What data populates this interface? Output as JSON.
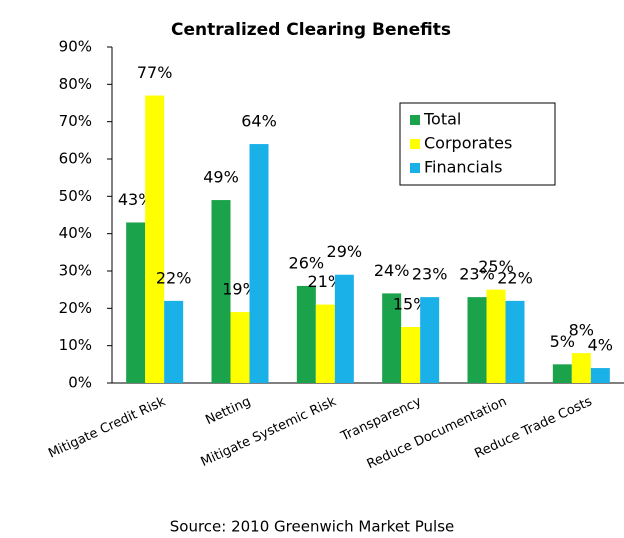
{
  "chart_data": {
    "type": "bar",
    "title": "Centralized Clearing Benefits",
    "source": "Source: 2010 Greenwich Market Pulse",
    "categories": [
      "Mitigate Credit Risk",
      "Netting",
      "Mitigate Systemic Risk",
      "Transparency",
      "Reduce Documentation",
      "Reduce Trade Costs"
    ],
    "series": [
      {
        "name": "Total",
        "color": "#1aa34a",
        "values": [
          43,
          49,
          26,
          24,
          23,
          5
        ],
        "value_labels": [
          "43%",
          "49%",
          "26%",
          "24%",
          "23%",
          "5%"
        ]
      },
      {
        "name": "Corporates",
        "color": "#ffff00",
        "values": [
          77,
          19,
          21,
          15,
          25,
          8
        ],
        "value_labels": [
          "77%",
          "19%",
          "21%",
          "15%",
          "25%",
          "8%"
        ]
      },
      {
        "name": "Financials",
        "color": "#1ab0e8",
        "values": [
          22,
          64,
          29,
          23,
          22,
          4
        ],
        "value_labels": [
          "22%",
          "64%",
          "29%",
          "23%",
          "22%",
          "4%"
        ]
      }
    ],
    "ylim": [
      0,
      90
    ],
    "yticks": [
      {
        "value": 0,
        "label": "0%"
      },
      {
        "value": 10,
        "label": "10%"
      },
      {
        "value": 20,
        "label": "20%"
      },
      {
        "value": 30,
        "label": "30%"
      },
      {
        "value": 40,
        "label": "40%"
      },
      {
        "value": 50,
        "label": "50%"
      },
      {
        "value": 60,
        "label": "60%"
      },
      {
        "value": 70,
        "label": "70%"
      },
      {
        "value": 80,
        "label": "80%"
      },
      {
        "value": 90,
        "label": "90%"
      }
    ],
    "legend": "upper right"
  }
}
